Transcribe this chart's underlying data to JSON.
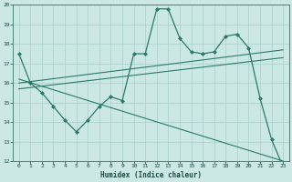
{
  "title": "",
  "xlabel": "Humidex (Indice chaleur)",
  "ylabel": "",
  "xlim": [
    -0.5,
    23.5
  ],
  "ylim": [
    12,
    20
  ],
  "yticks": [
    12,
    13,
    14,
    15,
    16,
    17,
    18,
    19,
    20
  ],
  "xticks": [
    0,
    1,
    2,
    3,
    4,
    5,
    6,
    7,
    8,
    9,
    10,
    11,
    12,
    13,
    14,
    15,
    16,
    17,
    18,
    19,
    20,
    21,
    22,
    23
  ],
  "line_color": "#2a7a6a",
  "bg_color": "#cce8e4",
  "grid_color": "#aacfcc",
  "series_main": {
    "x": [
      0,
      1,
      2,
      3,
      4,
      5,
      6,
      7,
      8,
      9,
      10,
      11,
      12,
      13,
      14,
      15,
      16,
      17,
      18,
      19,
      20,
      21,
      22,
      23
    ],
    "y": [
      17.5,
      16.0,
      15.5,
      14.8,
      14.1,
      13.5,
      14.1,
      14.8,
      15.3,
      15.1,
      17.5,
      17.5,
      19.8,
      19.8,
      18.3,
      17.6,
      17.5,
      17.6,
      18.4,
      18.5,
      17.8,
      15.2,
      13.1,
      11.7
    ]
  },
  "trend_lines": [
    {
      "x": [
        0,
        23
      ],
      "y": [
        16.0,
        17.7
      ]
    },
    {
      "x": [
        0,
        23
      ],
      "y": [
        15.7,
        17.3
      ]
    },
    {
      "x": [
        0,
        23
      ],
      "y": [
        16.2,
        12.0
      ]
    }
  ]
}
